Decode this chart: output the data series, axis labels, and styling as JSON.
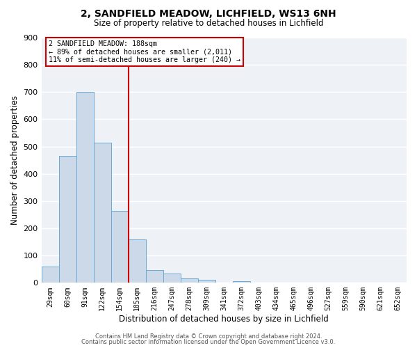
{
  "title": "2, SANDFIELD MEADOW, LICHFIELD, WS13 6NH",
  "subtitle": "Size of property relative to detached houses in Lichfield",
  "xlabel": "Distribution of detached houses by size in Lichfield",
  "ylabel": "Number of detached properties",
  "bar_labels": [
    "29sqm",
    "60sqm",
    "91sqm",
    "122sqm",
    "154sqm",
    "185sqm",
    "216sqm",
    "247sqm",
    "278sqm",
    "309sqm",
    "341sqm",
    "372sqm",
    "403sqm",
    "434sqm",
    "465sqm",
    "496sqm",
    "527sqm",
    "559sqm",
    "590sqm",
    "621sqm",
    "652sqm"
  ],
  "bar_values": [
    60,
    465,
    700,
    515,
    265,
    160,
    48,
    35,
    15,
    10,
    0,
    5,
    0,
    0,
    0,
    0,
    0,
    0,
    0,
    0,
    0
  ],
  "bar_color": "#ccd9e8",
  "bar_edgecolor": "#6aaad4",
  "ylim": [
    0,
    900
  ],
  "yticks": [
    0,
    100,
    200,
    300,
    400,
    500,
    600,
    700,
    800,
    900
  ],
  "vline_index": 4.5,
  "vline_color": "#cc0000",
  "annotation_title": "2 SANDFIELD MEADOW: 188sqm",
  "annotation_line1": "← 89% of detached houses are smaller (2,011)",
  "annotation_line2": "11% of semi-detached houses are larger (240) →",
  "annotation_box_edgecolor": "#cc0000",
  "footer_line1": "Contains HM Land Registry data © Crown copyright and database right 2024.",
  "footer_line2": "Contains public sector information licensed under the Open Government Licence v3.0.",
  "plot_bg_color": "#eef2f7",
  "fig_bg_color": "#ffffff",
  "grid_color": "#ffffff",
  "figsize": [
    6.0,
    5.0
  ],
  "dpi": 100
}
